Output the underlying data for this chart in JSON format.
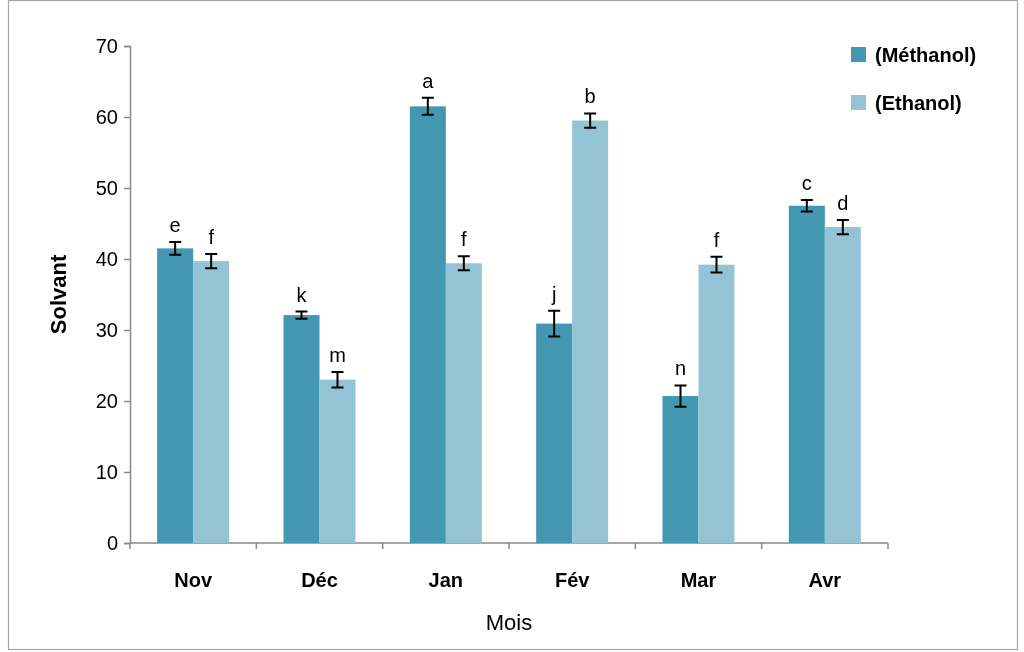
{
  "chart_data": {
    "type": "bar",
    "xlabel": "Mois",
    "ylabel": "Solvant",
    "categories": [
      "Nov",
      "Déc",
      "Jan",
      "Fév",
      "Mar",
      "Avr"
    ],
    "series": [
      {
        "name": "(Méthanol)",
        "color": "#4397b0",
        "values": [
          41.5,
          32.1,
          61.5,
          30.9,
          20.7,
          47.5
        ],
        "errors": [
          0.9,
          0.5,
          1.2,
          1.8,
          1.5,
          0.8
        ],
        "value_labels": [
          "e",
          "k",
          "a",
          "j",
          "n",
          "c"
        ]
      },
      {
        "name": "(Ethanol)",
        "color": "#93c3d4",
        "values": [
          39.7,
          23.0,
          39.4,
          59.5,
          39.2,
          44.5
        ],
        "errors": [
          1.0,
          1.1,
          1.0,
          1.0,
          1.1,
          1.0
        ],
        "value_labels": [
          "f",
          "m",
          "f",
          "b",
          "f",
          "d"
        ]
      }
    ],
    "ylim": [
      0,
      70
    ],
    "yticks": [
      0,
      10,
      20,
      30,
      40,
      50,
      60,
      70
    ],
    "legend": "top right"
  }
}
